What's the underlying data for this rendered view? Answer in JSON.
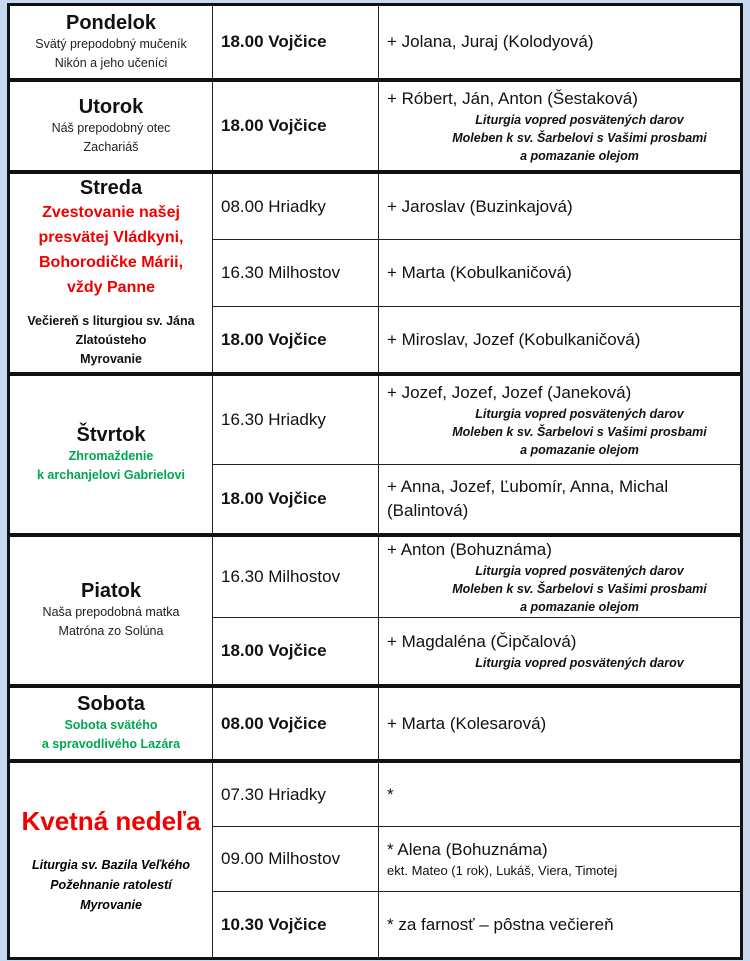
{
  "days": [
    {
      "name": "Pondelok",
      "sub": [
        "Svätý prepodobný mučeník",
        "Nikón a jeho učeníci"
      ],
      "rows": [
        {
          "time": "18.00 Vojčice",
          "bold": true,
          "intent": "+ Jolana, Juraj (Kolodyová)",
          "notes": []
        }
      ]
    },
    {
      "name": "Utorok",
      "sub": [
        "Náš prepodobný otec",
        "Zachariáš"
      ],
      "rows": [
        {
          "time": "18.00 Vojčice",
          "bold": true,
          "intent": "+ Róbert, Ján, Anton (Šestaková)",
          "notes": [
            "Liturgia vopred posvätených darov",
            "Moleben k sv. Šarbelovi s Vašimi prosbami",
            "a pomazanie olejom"
          ]
        }
      ]
    },
    {
      "name": "Streda",
      "feast_red": [
        "Zvestovanie našej",
        "presvätej Vládkyni,",
        "Bohorodičke Márii,",
        "vždy Panne"
      ],
      "day_notes": [
        "Večiereň s liturgiou sv. Jána",
        "Zlatoústeho",
        "Myrovanie"
      ],
      "rows": [
        {
          "time": "08.00 Hriadky",
          "bold": false,
          "intent": "+ Jaroslav (Buzinkajová)",
          "notes": []
        },
        {
          "time": "16.30 Milhostov",
          "bold": false,
          "intent": "+ Marta (Kobulkaničová)",
          "notes": []
        },
        {
          "time": "18.00 Vojčice",
          "bold": true,
          "intent": "+ Miroslav, Jozef (Kobulkaničová)",
          "notes": []
        }
      ]
    },
    {
      "name": "Štvrtok",
      "feast_green": [
        "Zhromaždenie",
        "k archanjelovi Gabrielovi"
      ],
      "rows": [
        {
          "time": "16.30 Hriadky",
          "bold": false,
          "intent": "+ Jozef, Jozef, Jozef (Janeková)",
          "notes": [
            "Liturgia vopred posvätených darov",
            "Moleben k sv. Šarbelovi s Vašimi prosbami",
            "a pomazanie olejom"
          ]
        },
        {
          "time": "18.00 Vojčice",
          "bold": true,
          "intent": "+ Anna, Jozef, Ľubomír, Anna, Michal (Balintová)",
          "notes": []
        }
      ]
    },
    {
      "name": "Piatok",
      "sub": [
        "Naša prepodobná matka",
        "Matróna zo Solúna"
      ],
      "rows": [
        {
          "time": "16.30 Milhostov",
          "bold": false,
          "intent": "+ Anton (Bohuznáma)",
          "notes": [
            "Liturgia vopred posvätených darov",
            "Moleben k sv. Šarbelovi s Vašimi prosbami",
            "a pomazanie olejom"
          ]
        },
        {
          "time": "18.00 Vojčice",
          "bold": true,
          "intent": "+ Magdaléna (Čipčalová)",
          "notes": [
            "Liturgia vopred posvätených darov"
          ]
        }
      ]
    },
    {
      "name": "Sobota",
      "feast_green": [
        "Sobota svätého",
        "a spravodlivého Lazára"
      ],
      "rows": [
        {
          "time": "08.00 Vojčice",
          "bold": true,
          "intent": "+ Marta (Kolesarová)",
          "notes": []
        }
      ]
    },
    {
      "name_red": "Kvetná nedeľa",
      "italic_notes": [
        "Liturgia sv. Bazila Veľkého",
        "Požehnanie ratolestí",
        "Myrovanie"
      ],
      "rows": [
        {
          "time": "07.30 Hriadky",
          "bold": false,
          "intent": "*",
          "notes": []
        },
        {
          "time": "09.00 Milhostov",
          "bold": false,
          "intent": "* Alena (Bohuznáma)",
          "small": "ekt. Mateo (1 rok), Lukáš, Viera, Timotej",
          "notes": []
        },
        {
          "time": "10.30 Vojčice",
          "bold": true,
          "intent": "* za farnosť – pôstna večiereň",
          "notes": []
        }
      ]
    }
  ]
}
